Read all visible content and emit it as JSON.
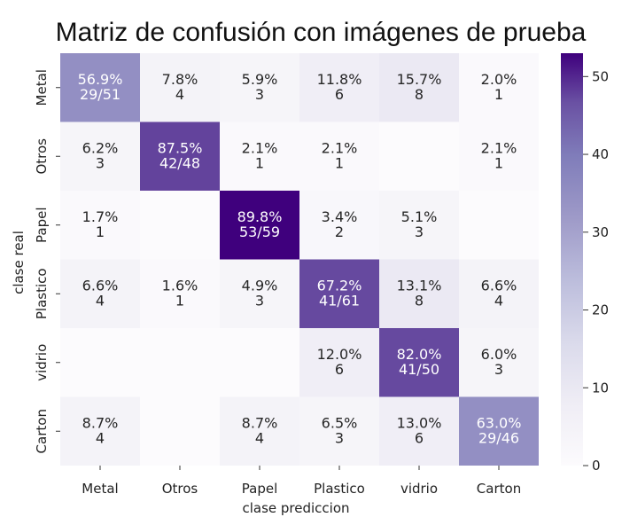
{
  "chart_data": {
    "type": "heatmap",
    "title": "Matriz de confusión con imágenes de prueba",
    "xlabel": "clase prediccion",
    "ylabel": "clase real",
    "x_categories": [
      "Metal",
      "Otros",
      "Papel",
      "Plastico",
      "vidrio",
      "Carton"
    ],
    "y_categories": [
      "Metal",
      "Otros",
      "Papel",
      "Plastico",
      "vidrio",
      "Carton"
    ],
    "values": [
      [
        29,
        4,
        3,
        6,
        8,
        1
      ],
      [
        3,
        42,
        1,
        1,
        0,
        1
      ],
      [
        1,
        0,
        53,
        2,
        3,
        0
      ],
      [
        4,
        1,
        3,
        41,
        8,
        4
      ],
      [
        0,
        0,
        0,
        6,
        41,
        3
      ],
      [
        4,
        0,
        4,
        3,
        6,
        29
      ]
    ],
    "row_totals": [
      51,
      48,
      59,
      61,
      50,
      46
    ],
    "annotations": [
      [
        "56.9%\n29/51",
        "7.8%\n4",
        "5.9%\n3",
        "11.8%\n6",
        "15.7%\n8",
        "2.0%\n1"
      ],
      [
        "6.2%\n3",
        "87.5%\n42/48",
        "2.1%\n1",
        "2.1%\n1",
        "",
        "2.1%\n1"
      ],
      [
        "1.7%\n1",
        "",
        "89.8%\n53/59",
        "3.4%\n2",
        "5.1%\n3",
        ""
      ],
      [
        "6.6%\n4",
        "1.6%\n1",
        "4.9%\n3",
        "67.2%\n41/61",
        "13.1%\n8",
        "6.6%\n4"
      ],
      [
        "",
        "",
        "",
        "12.0%\n6",
        "82.0%\n41/50",
        "6.0%\n3"
      ],
      [
        "8.7%\n4",
        "",
        "8.7%\n4",
        "6.5%\n3",
        "13.0%\n6",
        "63.0%\n29/46"
      ]
    ],
    "colorbar": {
      "min": 0,
      "max": 53,
      "ticks": [
        0,
        10,
        20,
        30,
        40,
        50
      ]
    },
    "colormap": {
      "low": "#fcfbfd",
      "high": "#3f007d"
    },
    "grid": false
  }
}
